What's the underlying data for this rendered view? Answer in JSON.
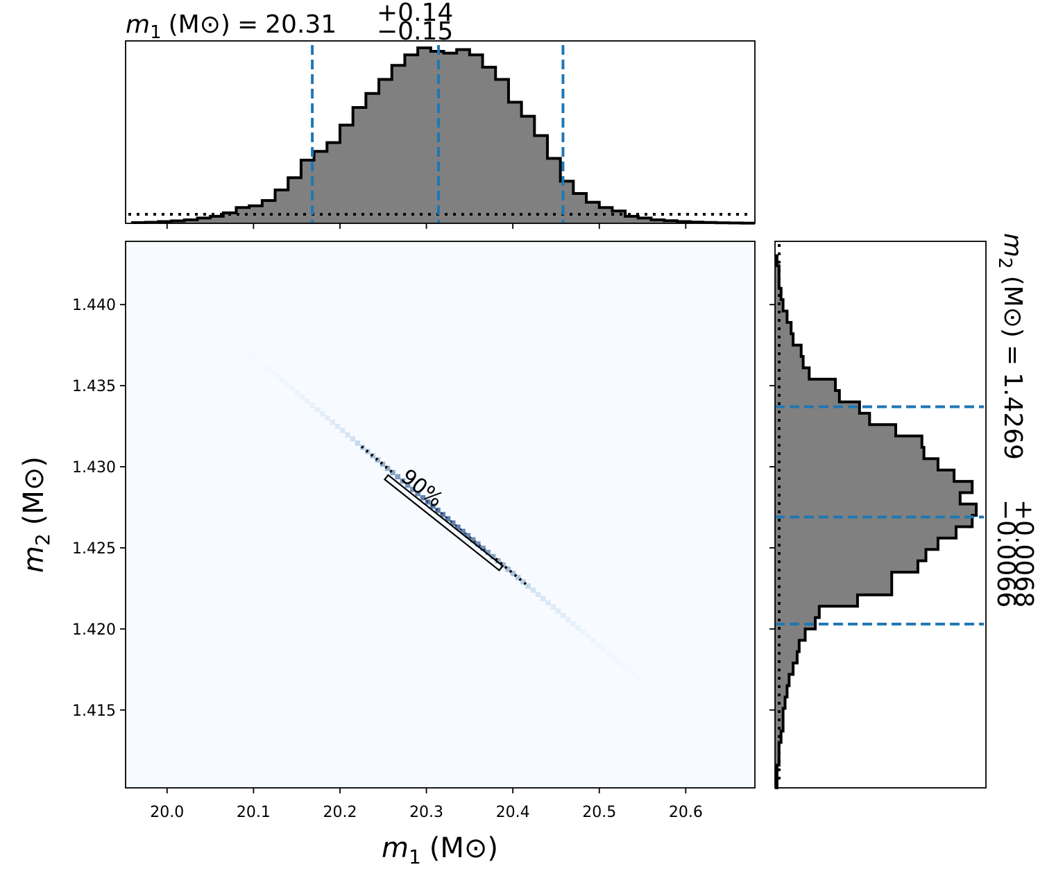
{
  "chart_data": [
    {
      "panel": "top-marginal",
      "type": "histogram",
      "title": {
        "symbol": "m",
        "subscript": "1",
        "unit": "(M⊙)",
        "equals": "=",
        "value": "20.31",
        "plus": "+0.14",
        "minus": "−0.15"
      },
      "x_range": [
        19.952,
        20.68
      ],
      "bin_edges": [
        19.96,
        19.975,
        19.99,
        20.005,
        20.02,
        20.035,
        20.05,
        20.065,
        20.08,
        20.095,
        20.11,
        20.125,
        20.14,
        20.155,
        20.17,
        20.185,
        20.2,
        20.215,
        20.23,
        20.245,
        20.26,
        20.275,
        20.29,
        20.305,
        20.32,
        20.335,
        20.35,
        20.365,
        20.38,
        20.395,
        20.41,
        20.425,
        20.44,
        20.455,
        20.47,
        20.485,
        20.5,
        20.515,
        20.53,
        20.545,
        20.56,
        20.575,
        20.59,
        20.605,
        20.62,
        20.635,
        20.65,
        20.665,
        20.68
      ],
      "counts": [
        0.004,
        0.006,
        0.01,
        0.014,
        0.02,
        0.03,
        0.04,
        0.06,
        0.09,
        0.1,
        0.13,
        0.19,
        0.26,
        0.36,
        0.41,
        0.46,
        0.56,
        0.66,
        0.74,
        0.82,
        0.9,
        0.96,
        1.0,
        0.98,
        0.97,
        0.99,
        0.96,
        0.89,
        0.82,
        0.69,
        0.61,
        0.5,
        0.37,
        0.24,
        0.17,
        0.12,
        0.09,
        0.07,
        0.04,
        0.03,
        0.02,
        0.015,
        0.01,
        0.007,
        0.005,
        0.003,
        0.002,
        0.001
      ],
      "prior_level": 0.05,
      "quantiles": [
        20.168,
        20.314,
        20.458
      ],
      "line_color": "#1f77b4",
      "fill_color": "#808080"
    },
    {
      "panel": "joint",
      "type": "heatmap",
      "xlabel": {
        "symbol": "m",
        "subscript": "1",
        "unit": "(M⊙)"
      },
      "ylabel": {
        "symbol": "m",
        "subscript": "2",
        "unit": "(M⊙)"
      },
      "xlim": [
        19.952,
        20.68
      ],
      "ylim": [
        1.4102,
        1.4439
      ],
      "x_ticks": [
        "20.0",
        "20.1",
        "20.2",
        "20.3",
        "20.4",
        "20.5",
        "20.6"
      ],
      "y_ticks": [
        "1.415",
        "1.420",
        "1.425",
        "1.430",
        "1.435",
        "1.440"
      ],
      "correlation_line": [
        [
          20.0,
          1.4413
        ],
        [
          20.6,
          1.4145
        ]
      ],
      "contour_label": "90%",
      "contour_box": [
        [
          20.255,
          1.4293
        ],
        [
          20.385,
          1.4238
        ]
      ],
      "cmap_low": "#f7fbff",
      "cmap_high": "#08306b"
    },
    {
      "panel": "right-marginal",
      "type": "histogram",
      "orientation": "horizontal",
      "title": {
        "symbol": "m",
        "subscript": "2",
        "unit": "(M⊙)",
        "equals": "=",
        "value": "1.4269",
        "plus": "+0.0068",
        "minus": "−0.0066"
      },
      "bin_edges": [
        1.4102,
        1.4109,
        1.4116,
        1.4123,
        1.413,
        1.4137,
        1.4144,
        1.4151,
        1.4158,
        1.4165,
        1.4172,
        1.4179,
        1.4186,
        1.4193,
        1.42,
        1.4207,
        1.4214,
        1.4221,
        1.4228,
        1.4235,
        1.4242,
        1.4249,
        1.4256,
        1.4263,
        1.427,
        1.4277,
        1.4284,
        1.4291,
        1.4298,
        1.4305,
        1.4312,
        1.4319,
        1.4326,
        1.4333,
        1.434,
        1.4347,
        1.4354,
        1.4361,
        1.4368,
        1.4375,
        1.4382,
        1.4389,
        1.4396,
        1.4403,
        1.441,
        1.4417,
        1.4424,
        1.4431
      ],
      "counts": [
        0.01,
        0.01,
        0.02,
        0.02,
        0.03,
        0.04,
        0.04,
        0.05,
        0.06,
        0.07,
        0.09,
        0.11,
        0.12,
        0.15,
        0.2,
        0.22,
        0.41,
        0.58,
        0.58,
        0.71,
        0.75,
        0.81,
        0.9,
        0.98,
        1.0,
        0.92,
        0.98,
        0.89,
        0.81,
        0.74,
        0.73,
        0.6,
        0.47,
        0.42,
        0.32,
        0.3,
        0.17,
        0.14,
        0.13,
        0.09,
        0.08,
        0.06,
        0.04,
        0.03,
        0.02,
        0.02,
        0.01
      ],
      "prior_level": 0.02,
      "quantiles": [
        1.4203,
        1.4269,
        1.4337
      ],
      "line_color": "#1f77b4",
      "fill_color": "#808080"
    }
  ]
}
